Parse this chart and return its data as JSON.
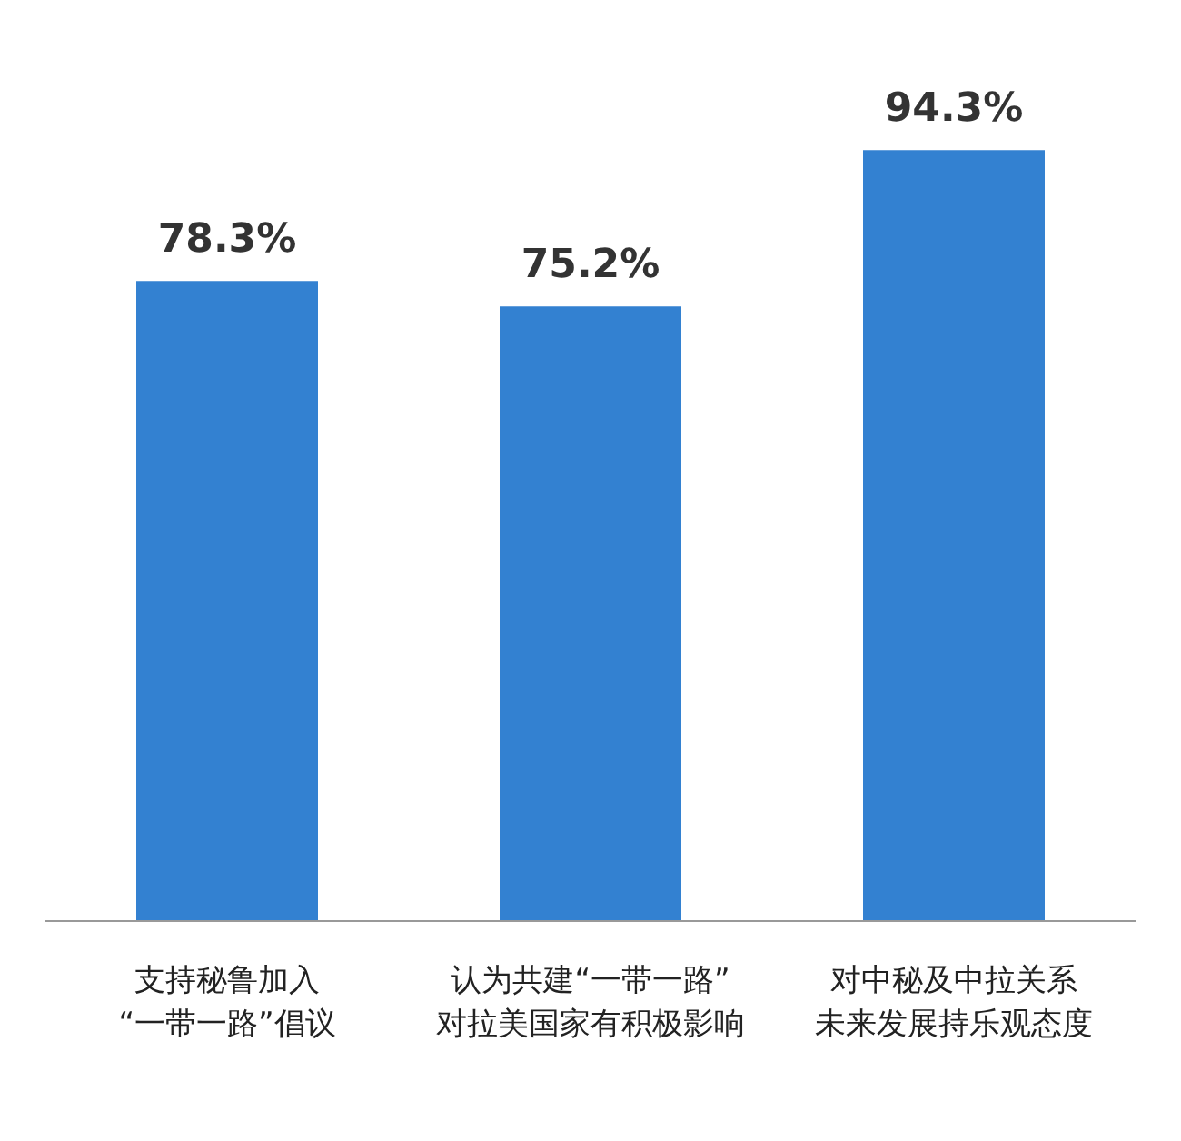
{
  "chart_data": {
    "type": "bar",
    "categories": [
      "支持秘鲁加入“一带一路”倡议",
      "认为共建“一带一路”对拉美国家有积极影响",
      "对中秘及中拉关系未来发展持乐观态度"
    ],
    "values": [
      78.3,
      75.2,
      94.3
    ],
    "value_labels": [
      "78.3%",
      "75.2%",
      "94.3%"
    ],
    "color": "#3381d1"
  }
}
